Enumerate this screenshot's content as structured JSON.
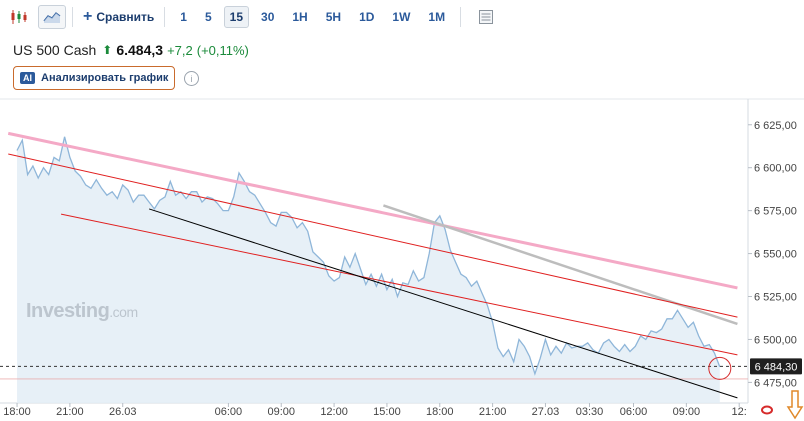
{
  "toolbar": {
    "candles_icon": "candlestick-icon",
    "area_icon": "area-chart-icon",
    "compare_label": "Сравнить",
    "timeframes": [
      "1",
      "5",
      "15",
      "30",
      "1H",
      "5H",
      "1D",
      "1W",
      "1M"
    ],
    "active_timeframe": "15",
    "settings_icon": "table-icon"
  },
  "quote": {
    "symbol": "US 500 Cash",
    "price": "6.484,3",
    "change": "+7,2",
    "change_pct": "(+0,11%)",
    "direction": "up"
  },
  "ai_button": {
    "badge": "AI",
    "label": "Анализировать график"
  },
  "watermark": {
    "brand": "Investing",
    "suffix": ".com"
  },
  "colors": {
    "price_line": "#8fb6d9",
    "area_fill": "#e3edf6",
    "red_lines": "#e02020",
    "pink_line": "#f4a9c6",
    "gray_line": "#bdbdbd",
    "black_line": "#000000",
    "up": "#1a8a3a"
  },
  "chart_data": {
    "type": "area",
    "symbol": "US 500 Cash",
    "timeframe_minutes": 15,
    "y_ticks": [
      "6 625,00",
      "6 600,00",
      "6 575,00",
      "6 550,00",
      "6 525,00",
      "6 500,00",
      "6 475,00"
    ],
    "y_tick_values": [
      6625,
      6600,
      6575,
      6550,
      6525,
      6500,
      6475
    ],
    "ylim": [
      6463,
      6640
    ],
    "x_ticks": [
      {
        "label": "18:00",
        "t": 0
      },
      {
        "label": "21:00",
        "t": 3
      },
      {
        "label": "26.03",
        "t": 6
      },
      {
        "label": "06:00",
        "t": 12
      },
      {
        "label": "09:00",
        "t": 15
      },
      {
        "label": "12:00",
        "t": 18
      },
      {
        "label": "15:00",
        "t": 21
      },
      {
        "label": "18:00",
        "t": 24
      },
      {
        "label": "21:00",
        "t": 27
      },
      {
        "label": "27.03",
        "t": 30
      },
      {
        "label": "03:30",
        "t": 32.5
      },
      {
        "label": "06:00",
        "t": 35
      },
      {
        "label": "09:00",
        "t": 38
      },
      {
        "label": "12:",
        "t": 41
      }
    ],
    "series": [
      {
        "values": [
          [
            0,
            6610
          ],
          [
            0.3,
            6616
          ],
          [
            0.6,
            6596
          ],
          [
            0.9,
            6601
          ],
          [
            1.2,
            6594
          ],
          [
            1.5,
            6600
          ],
          [
            1.8,
            6596
          ],
          [
            2.1,
            6606
          ],
          [
            2.4,
            6604
          ],
          [
            2.7,
            6618
          ],
          [
            3.0,
            6606
          ],
          [
            3.3,
            6598
          ],
          [
            3.6,
            6595
          ],
          [
            3.9,
            6590
          ],
          [
            4.2,
            6588
          ],
          [
            4.5,
            6593
          ],
          [
            4.8,
            6588
          ],
          [
            5.1,
            6584
          ],
          [
            5.4,
            6586
          ],
          [
            5.7,
            6582
          ],
          [
            6.0,
            6590
          ],
          [
            6.3,
            6587
          ],
          [
            6.6,
            6580
          ],
          [
            6.9,
            6584
          ],
          [
            7.2,
            6584
          ],
          [
            7.5,
            6580
          ],
          [
            7.8,
            6576
          ],
          [
            8.1,
            6581
          ],
          [
            8.4,
            6583
          ],
          [
            8.7,
            6592
          ],
          [
            9.0,
            6584
          ],
          [
            9.3,
            6586
          ],
          [
            9.6,
            6582
          ],
          [
            9.9,
            6586
          ],
          [
            10.2,
            6586
          ],
          [
            10.5,
            6580
          ],
          [
            10.8,
            6583
          ],
          [
            11.1,
            6582
          ],
          [
            11.4,
            6579
          ],
          [
            11.7,
            6575
          ],
          [
            12.0,
            6575
          ],
          [
            12.3,
            6583
          ],
          [
            12.6,
            6597
          ],
          [
            12.9,
            6592
          ],
          [
            13.2,
            6586
          ],
          [
            13.5,
            6584
          ],
          [
            13.8,
            6579
          ],
          [
            14.1,
            6574
          ],
          [
            14.4,
            6568
          ],
          [
            14.7,
            6566
          ],
          [
            15.0,
            6574
          ],
          [
            15.3,
            6574
          ],
          [
            15.6,
            6571
          ],
          [
            15.9,
            6565
          ],
          [
            16.2,
            6568
          ],
          [
            16.5,
            6563
          ],
          [
            16.8,
            6551
          ],
          [
            17.1,
            6548
          ],
          [
            17.4,
            6545
          ],
          [
            17.7,
            6537
          ],
          [
            18.0,
            6534
          ],
          [
            18.3,
            6536
          ],
          [
            18.6,
            6548
          ],
          [
            18.9,
            6542
          ],
          [
            19.2,
            6550
          ],
          [
            19.5,
            6541
          ],
          [
            19.8,
            6532
          ],
          [
            20.1,
            6538
          ],
          [
            20.4,
            6531
          ],
          [
            20.7,
            6538
          ],
          [
            21.0,
            6529
          ],
          [
            21.3,
            6535
          ],
          [
            21.6,
            6525
          ],
          [
            21.9,
            6533
          ],
          [
            22.2,
            6532
          ],
          [
            22.5,
            6540
          ],
          [
            22.8,
            6534
          ],
          [
            23.1,
            6536
          ],
          [
            23.4,
            6550
          ],
          [
            23.7,
            6568
          ],
          [
            24.0,
            6572
          ],
          [
            24.3,
            6564
          ],
          [
            24.6,
            6552
          ],
          [
            24.9,
            6545
          ],
          [
            25.2,
            6538
          ],
          [
            25.5,
            6536
          ],
          [
            25.8,
            6531
          ],
          [
            26.1,
            6534
          ],
          [
            26.4,
            6527
          ],
          [
            26.7,
            6520
          ],
          [
            27.0,
            6510
          ],
          [
            27.3,
            6495
          ],
          [
            27.6,
            6490
          ],
          [
            27.9,
            6494
          ],
          [
            28.2,
            6487
          ],
          [
            28.5,
            6500
          ],
          [
            28.8,
            6496
          ],
          [
            29.1,
            6490
          ],
          [
            29.4,
            6480
          ],
          [
            29.7,
            6489
          ],
          [
            30.0,
            6500
          ],
          [
            30.3,
            6491
          ],
          [
            30.6,
            6496
          ],
          [
            30.9,
            6492
          ],
          [
            31.2,
            6498
          ],
          [
            31.5,
            6495
          ],
          [
            31.8,
            6496
          ],
          [
            32.1,
            6496
          ],
          [
            32.4,
            6498
          ],
          [
            32.7,
            6494
          ],
          [
            33.0,
            6492
          ],
          [
            33.3,
            6498
          ],
          [
            33.6,
            6500
          ],
          [
            33.9,
            6496
          ],
          [
            34.2,
            6493
          ],
          [
            34.5,
            6497
          ],
          [
            34.8,
            6493
          ],
          [
            35.1,
            6496
          ],
          [
            35.4,
            6502
          ],
          [
            35.7,
            6500
          ],
          [
            36.0,
            6505
          ],
          [
            36.3,
            6504
          ],
          [
            36.6,
            6506
          ],
          [
            36.9,
            6512
          ],
          [
            37.2,
            6512
          ],
          [
            37.5,
            6517
          ],
          [
            37.8,
            6512
          ],
          [
            38.1,
            6507
          ],
          [
            38.4,
            6510
          ],
          [
            38.7,
            6502
          ],
          [
            39.0,
            6496
          ],
          [
            39.3,
            6497
          ],
          [
            39.6,
            6492
          ],
          [
            39.9,
            6484
          ]
        ]
      }
    ],
    "current_price": {
      "value": 6484.3,
      "label": "6 484,30"
    },
    "drawn_lines": [
      {
        "name": "pink",
        "from": [
          -0.5,
          6620
        ],
        "to": [
          40.9,
          6530
        ]
      },
      {
        "name": "gray",
        "from": [
          20.8,
          6578
        ],
        "to": [
          40.9,
          6509
        ]
      },
      {
        "name": "red-upper",
        "from": [
          -0.5,
          6608
        ],
        "to": [
          40.9,
          6513
        ]
      },
      {
        "name": "red-lower",
        "from": [
          2.5,
          6573
        ],
        "to": [
          40.9,
          6491
        ]
      },
      {
        "name": "black",
        "from": [
          7.5,
          6576
        ],
        "to": [
          40.9,
          6466
        ]
      }
    ],
    "grid": true,
    "legend": "none"
  }
}
